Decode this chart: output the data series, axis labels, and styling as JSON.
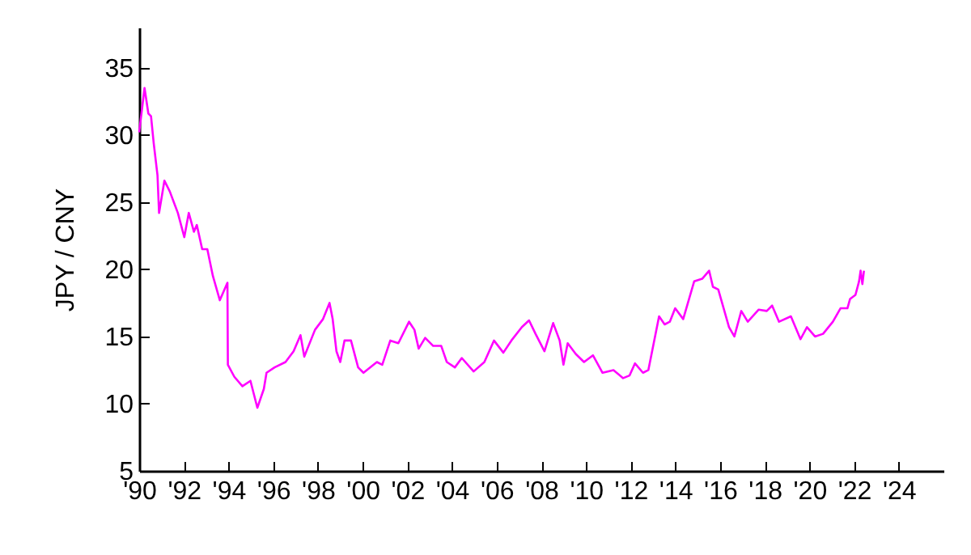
{
  "chart_data": {
    "type": "line",
    "ylabel": "JPY / CNY",
    "grid": false,
    "marker": "none",
    "line_style": "solid",
    "xlim": [
      1990,
      2026
    ],
    "ylim": [
      5,
      38
    ],
    "xticks": [
      {
        "value": 1990,
        "label": "'90"
      },
      {
        "value": 1992,
        "label": "'92"
      },
      {
        "value": 1994,
        "label": "'94"
      },
      {
        "value": 1996,
        "label": "'96"
      },
      {
        "value": 1998,
        "label": "'98"
      },
      {
        "value": 2000,
        "label": "'00"
      },
      {
        "value": 2002,
        "label": "'02"
      },
      {
        "value": 2004,
        "label": "'04"
      },
      {
        "value": 2006,
        "label": "'06"
      },
      {
        "value": 2008,
        "label": "'08"
      },
      {
        "value": 2010,
        "label": "'10"
      },
      {
        "value": 2012,
        "label": "'12"
      },
      {
        "value": 2014,
        "label": "'14"
      },
      {
        "value": 2016,
        "label": "'16"
      },
      {
        "value": 2018,
        "label": "'18"
      },
      {
        "value": 2020,
        "label": "'20"
      },
      {
        "value": 2022,
        "label": "'22"
      },
      {
        "value": 2024,
        "label": "'24"
      }
    ],
    "yticks": [
      5,
      10,
      15,
      20,
      25,
      30,
      35
    ],
    "x": [
      1990.0,
      1990.24,
      1990.41,
      1990.53,
      1990.65,
      1990.82,
      1990.89,
      1991.13,
      1991.37,
      1991.73,
      1992.02,
      1992.22,
      1992.45,
      1992.58,
      1992.82,
      1993.05,
      1993.3,
      1993.61,
      1993.95,
      1993.97,
      1994.26,
      1994.62,
      1994.98,
      1995.29,
      1995.58,
      1995.7,
      1996.06,
      1996.55,
      1996.91,
      1997.22,
      1997.39,
      1997.87,
      1998.23,
      1998.52,
      1998.66,
      1998.83,
      1999.0,
      1999.19,
      1999.48,
      1999.8,
      2000.04,
      2000.64,
      2000.88,
      2001.24,
      2001.6,
      2002.08,
      2002.32,
      2002.51,
      2002.8,
      2003.16,
      2003.52,
      2003.77,
      2004.13,
      2004.44,
      2004.97,
      2005.45,
      2005.88,
      2006.3,
      2006.66,
      2007.13,
      2007.45,
      2007.74,
      2008.14,
      2008.53,
      2008.82,
      2008.99,
      2009.18,
      2009.54,
      2009.91,
      2010.31,
      2010.74,
      2011.23,
      2011.66,
      2011.95,
      2012.19,
      2012.55,
      2012.79,
      2013.27,
      2013.52,
      2013.75,
      2013.99,
      2014.35,
      2014.84,
      2015.2,
      2015.51,
      2015.68,
      2015.92,
      2016.16,
      2016.4,
      2016.64,
      2016.95,
      2017.24,
      2017.73,
      2018.09,
      2018.33,
      2018.64,
      2019.17,
      2019.6,
      2019.89,
      2020.25,
      2020.61,
      2021.05,
      2021.39,
      2021.7,
      2021.82,
      2022.06,
      2022.22,
      2022.29,
      2022.37,
      2022.44
    ],
    "series": [
      {
        "color": "#ff00ff",
        "values": [
          30.2,
          33.5,
          31.6,
          31.4,
          29.4,
          27.0,
          24.2,
          26.6,
          25.8,
          24.2,
          22.4,
          24.2,
          22.8,
          23.3,
          21.5,
          21.5,
          19.5,
          17.7,
          19.0,
          12.9,
          12.0,
          11.3,
          11.7,
          9.7,
          11.1,
          12.3,
          12.7,
          13.1,
          13.9,
          15.1,
          13.5,
          15.5,
          16.3,
          17.5,
          16.3,
          13.9,
          13.1,
          14.7,
          14.7,
          12.7,
          12.3,
          13.1,
          12.9,
          14.7,
          14.5,
          16.1,
          15.5,
          14.1,
          14.9,
          14.3,
          14.3,
          13.1,
          12.7,
          13.4,
          12.4,
          13.1,
          14.7,
          13.8,
          14.7,
          15.7,
          16.2,
          15.2,
          13.9,
          16.0,
          14.7,
          12.9,
          14.5,
          13.7,
          13.1,
          13.6,
          12.3,
          12.5,
          11.9,
          12.1,
          13.0,
          12.3,
          12.5,
          16.5,
          15.9,
          16.1,
          17.1,
          16.3,
          19.1,
          19.3,
          19.9,
          18.7,
          18.5,
          17.1,
          15.7,
          15.0,
          16.9,
          16.1,
          17.0,
          16.9,
          17.3,
          16.1,
          16.5,
          14.8,
          15.7,
          15.0,
          15.2,
          16.1,
          17.1,
          17.1,
          17.8,
          18.1,
          19.1,
          19.9,
          18.9,
          19.9
        ]
      }
    ]
  }
}
